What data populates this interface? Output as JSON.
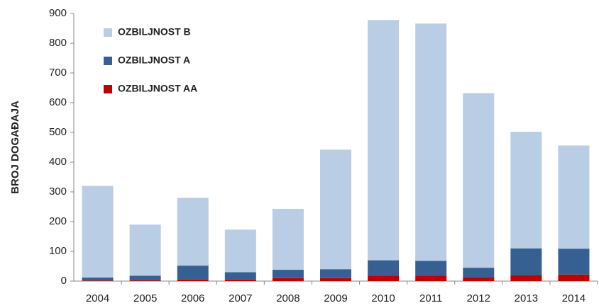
{
  "chart_data": {
    "type": "stacked_bar",
    "y_label": "BROJ DOGAĐAJA",
    "categories": [
      "2004",
      "2005",
      "2006",
      "2007",
      "2008",
      "2009",
      "2010",
      "2011",
      "2012",
      "2013",
      "2014"
    ],
    "series": [
      {
        "name": "OZBILJNOST B",
        "color": "#b9cde5",
        "values": [
          308,
          172,
          228,
          143,
          205,
          402,
          808,
          798,
          587,
          392,
          347
        ]
      },
      {
        "name": "OZBILJNOST A",
        "color": "#376092",
        "values": [
          10,
          15,
          47,
          25,
          28,
          30,
          52,
          50,
          33,
          90,
          87
        ]
      },
      {
        "name": "OZBILJNOST AA",
        "color": "#c00000",
        "values": [
          2,
          3,
          5,
          5,
          10,
          10,
          18,
          18,
          12,
          20,
          22
        ]
      }
    ],
    "ylim": [
      0,
      900
    ],
    "yticks": [
      0,
      100,
      200,
      300,
      400,
      500,
      600,
      700,
      800,
      900
    ],
    "legend": "top-left",
    "grid": false
  }
}
